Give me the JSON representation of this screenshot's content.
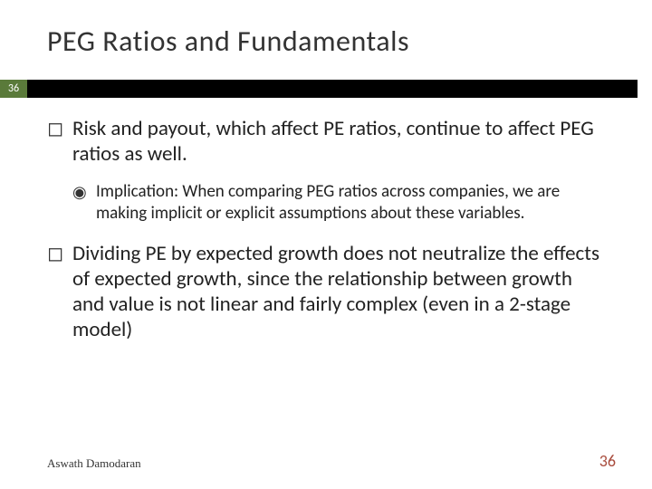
{
  "slide": {
    "title": "PEG Ratios and Fundamentals",
    "slide_number_badge": "36",
    "bullets": {
      "b1": {
        "text": "Risk and payout, which affect PE ratios, continue to affect PEG ratios as well.",
        "sub": {
          "s1": "Implication: When comparing PEG ratios across companies, we are making implicit or explicit assumptions about these variables."
        }
      },
      "b2": {
        "text": "Dividing PE by expected growth does not neutralize the effects of expected growth, since the relationship between growth and value is not linear and fairly complex (even in a 2-stage model)"
      }
    },
    "footer": {
      "author": "Aswath Damodaran",
      "page_number": "36"
    }
  },
  "colors": {
    "badge_bg": "#5a7a3a",
    "stripe_bg": "#000000",
    "title_color": "#333333",
    "body_color": "#222222",
    "pagenum_color": "#a84b3c",
    "background": "#ffffff"
  },
  "typography": {
    "title_fontsize": 32,
    "l1_fontsize": 23,
    "l2_fontsize": 19,
    "footer_fontsize": 13,
    "pagenum_fontsize": 18
  }
}
